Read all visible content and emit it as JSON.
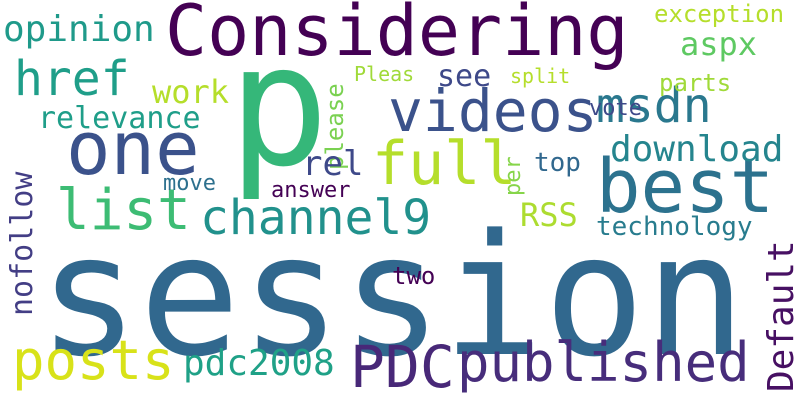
{
  "words": {
    "session": {
      "text": "session",
      "color": "#31688e"
    },
    "considering": {
      "text": "Considering",
      "color": "#440154"
    },
    "p": {
      "text": "p",
      "color": "#35b779"
    },
    "one": {
      "text": "one",
      "color": "#3b528b"
    },
    "best": {
      "text": "best",
      "color": "#2c728e"
    },
    "videos": {
      "text": "videos",
      "color": "#3b528b"
    },
    "full": {
      "text": "full",
      "color": "#b5de2b"
    },
    "published": {
      "text": "published",
      "color": "#472d7b"
    },
    "pdc_upper": {
      "text": "PDC",
      "color": "#482878"
    },
    "posts": {
      "text": "posts",
      "color": "#d8e219"
    },
    "channel9": {
      "text": "channel9",
      "color": "#21918c"
    },
    "list": {
      "text": "list",
      "color": "#3dbc74"
    },
    "href": {
      "text": "href",
      "color": "#1f9e89"
    },
    "msdn": {
      "text": "msdn",
      "color": "#2a788e"
    },
    "download": {
      "text": "download",
      "color": "#25858e"
    },
    "opinion": {
      "text": "opinion",
      "color": "#1f9a8a"
    },
    "aspx": {
      "text": "aspx",
      "color": "#5ec962"
    },
    "pdc2008": {
      "text": "pdc2008",
      "color": "#1fa187"
    },
    "default": {
      "text": "Default",
      "color": "#471063"
    },
    "nofollow": {
      "text": "nofollow",
      "color": "#433e85"
    },
    "relevance": {
      "text": "relevance",
      "color": "#1f9e89"
    },
    "work": {
      "text": "work",
      "color": "#b5de2b"
    },
    "see": {
      "text": "see",
      "color": "#3e4989"
    },
    "rel": {
      "text": "rel",
      "color": "#3e4989"
    },
    "please": {
      "text": "please",
      "color": "#7ad151"
    },
    "pleas": {
      "text": "Pleas",
      "color": "#a0da39"
    },
    "split": {
      "text": "split",
      "color": "#b5de2b"
    },
    "parts": {
      "text": "parts",
      "color": "#a0da39"
    },
    "exception": {
      "text": "exception",
      "color": "#b5de2b"
    },
    "vote": {
      "text": "vote",
      "color": "#3e4989"
    },
    "rss": {
      "text": "RSS",
      "color": "#addc30"
    },
    "top": {
      "text": "top",
      "color": "#31688e"
    },
    "per": {
      "text": "per",
      "color": "#86d549"
    },
    "technology": {
      "text": "technology",
      "color": "#287c8e"
    },
    "move": {
      "text": "move",
      "color": "#2d708e"
    },
    "answer": {
      "text": "answer",
      "color": "#440154"
    },
    "two": {
      "text": "two",
      "color": "#440154"
    }
  }
}
